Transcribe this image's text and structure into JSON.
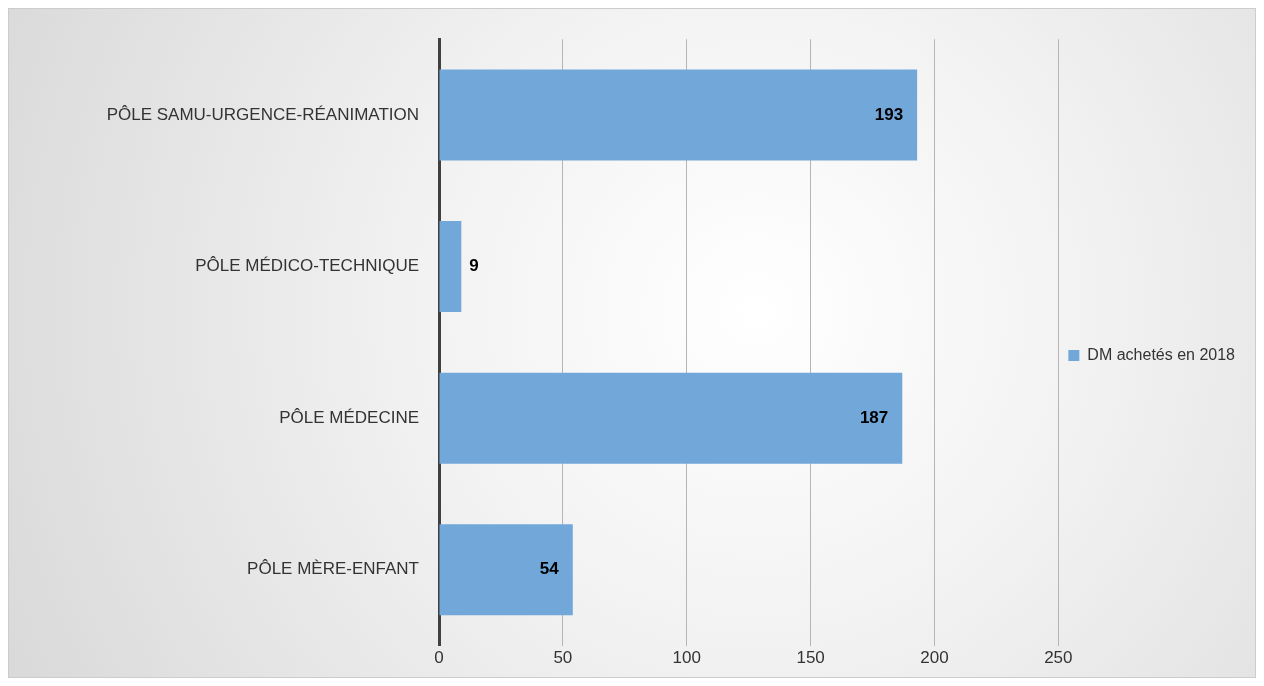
{
  "chart_data": {
    "type": "bar",
    "orientation": "horizontal",
    "categories": [
      "PÔLE SAMU-URGENCE-RÉANIMATION",
      "PÔLE MÉDICO-TECHNIQUE",
      "PÔLE MÉDECINE",
      "PÔLE MÈRE-ENFANT"
    ],
    "series": [
      {
        "name": "DM achetés en 2018",
        "color": "#72a7da",
        "values": [
          193,
          9,
          187,
          54
        ]
      }
    ],
    "xlim": [
      0,
      250
    ],
    "xticks": [
      0,
      50,
      100,
      150,
      200,
      250
    ],
    "grid": "x",
    "legend": "right",
    "data_labels": true
  }
}
